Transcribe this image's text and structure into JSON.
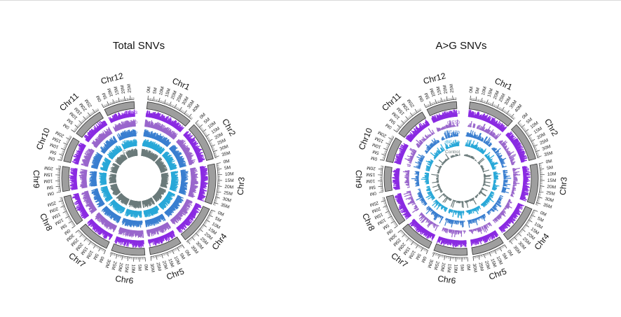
{
  "chart_data": [
    {
      "type": "circos",
      "title": "Total SNVs",
      "chromosomes": [
        {
          "name": "Chr1",
          "length_mb": 43
        },
        {
          "name": "Chr2",
          "length_mb": 36
        },
        {
          "name": "Chr3",
          "length_mb": 37
        },
        {
          "name": "Chr4",
          "length_mb": 36
        },
        {
          "name": "Chr5",
          "length_mb": 30
        },
        {
          "name": "Chr6",
          "length_mb": 31
        },
        {
          "name": "Chr7",
          "length_mb": 30
        },
        {
          "name": "Chr8",
          "length_mb": 28
        },
        {
          "name": "Chr9",
          "length_mb": 23
        },
        {
          "name": "Chr10",
          "length_mb": 23
        },
        {
          "name": "Chr11",
          "length_mb": 29
        },
        {
          "name": "Chr12",
          "length_mb": 28
        }
      ],
      "tick_step_mb": 5,
      "series": [
        {
          "name": "rBE53",
          "color": "#8a2be2",
          "density": "high"
        },
        {
          "name": "rBE50",
          "color": "#9966cc",
          "density": "high"
        },
        {
          "name": "rBE49b",
          "color": "#3a7fd0",
          "density": "high"
        },
        {
          "name": "rBE45b",
          "color": "#29a8d8",
          "density": "high"
        },
        {
          "name": "Control",
          "color": "#6b7b7b",
          "density": "high"
        }
      ]
    },
    {
      "type": "circos",
      "title": "A>G SNVs",
      "chromosomes": [
        {
          "name": "Chr1",
          "length_mb": 43
        },
        {
          "name": "Chr2",
          "length_mb": 36
        },
        {
          "name": "Chr3",
          "length_mb": 37
        },
        {
          "name": "Chr4",
          "length_mb": 36
        },
        {
          "name": "Chr5",
          "length_mb": 30
        },
        {
          "name": "Chr6",
          "length_mb": 31
        },
        {
          "name": "Chr7",
          "length_mb": 30
        },
        {
          "name": "Chr8",
          "length_mb": 28
        },
        {
          "name": "Chr9",
          "length_mb": 23
        },
        {
          "name": "Chr10",
          "length_mb": 23
        },
        {
          "name": "Chr11",
          "length_mb": 29
        },
        {
          "name": "Chr12",
          "length_mb": 28
        }
      ],
      "tick_step_mb": 5,
      "series": [
        {
          "name": "rBE53",
          "color": "#8a2be2",
          "density": "high"
        },
        {
          "name": "rBE50",
          "color": "#9966cc",
          "density": "medium"
        },
        {
          "name": "rBE49b",
          "color": "#3a7fd0",
          "density": "medium"
        },
        {
          "name": "rBE45b",
          "color": "#29a8d8",
          "density": "medium"
        },
        {
          "name": "Control",
          "color": "#6b7b7b",
          "density": "low"
        }
      ]
    }
  ]
}
